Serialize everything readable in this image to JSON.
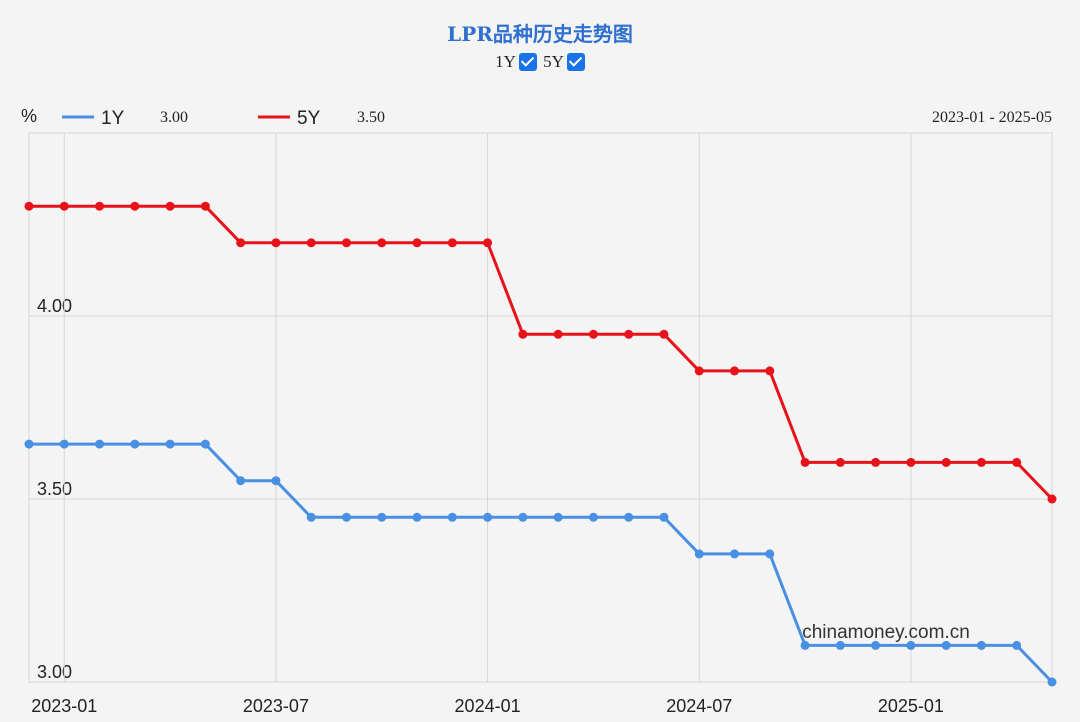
{
  "title": "LPR品种历史走势图",
  "toggles": [
    {
      "label": "1Y",
      "checked": true
    },
    {
      "label": "5Y",
      "checked": true
    }
  ],
  "legend": {
    "unit": "%",
    "items": [
      {
        "name": "1Y",
        "value": "3.00",
        "color": "#4a90e2"
      },
      {
        "name": "5Y",
        "value": "3.50",
        "color": "#e8121a"
      }
    ],
    "range": "2023-01 - 2025-05"
  },
  "watermark": "chinamoney.com.cn",
  "chart_data": {
    "type": "line",
    "x": [
      "2022-12",
      "2023-01",
      "2023-02",
      "2023-03",
      "2023-04",
      "2023-05",
      "2023-06",
      "2023-07",
      "2023-08",
      "2023-09",
      "2023-10",
      "2023-11",
      "2023-12",
      "2024-01",
      "2024-02",
      "2024-03",
      "2024-04",
      "2024-05",
      "2024-06",
      "2024-07",
      "2024-08",
      "2024-09",
      "2024-10",
      "2024-11",
      "2024-12",
      "2025-01",
      "2025-02",
      "2025-03",
      "2025-04",
      "2025-05"
    ],
    "series": [
      {
        "name": "1Y",
        "color": "#4a90e2",
        "values": [
          3.65,
          3.65,
          3.65,
          3.65,
          3.65,
          3.65,
          3.55,
          3.55,
          3.45,
          3.45,
          3.45,
          3.45,
          3.45,
          3.45,
          3.45,
          3.45,
          3.45,
          3.45,
          3.45,
          3.35,
          3.35,
          3.35,
          3.1,
          3.1,
          3.1,
          3.1,
          3.1,
          3.1,
          3.1,
          3.0
        ]
      },
      {
        "name": "5Y",
        "color": "#e8121a",
        "values": [
          4.3,
          4.3,
          4.3,
          4.3,
          4.3,
          4.3,
          4.2,
          4.2,
          4.2,
          4.2,
          4.2,
          4.2,
          4.2,
          4.2,
          3.95,
          3.95,
          3.95,
          3.95,
          3.95,
          3.85,
          3.85,
          3.85,
          3.6,
          3.6,
          3.6,
          3.6,
          3.6,
          3.6,
          3.6,
          3.5
        ]
      }
    ],
    "y_ticks": [
      "3.00",
      "3.50",
      "4.00"
    ],
    "x_ticks": [
      "2023-01",
      "2023-07",
      "2024-01",
      "2024-07",
      "2025-01"
    ],
    "ylim": [
      3.0,
      4.5
    ],
    "grid": true,
    "legend_position": "top-left"
  }
}
